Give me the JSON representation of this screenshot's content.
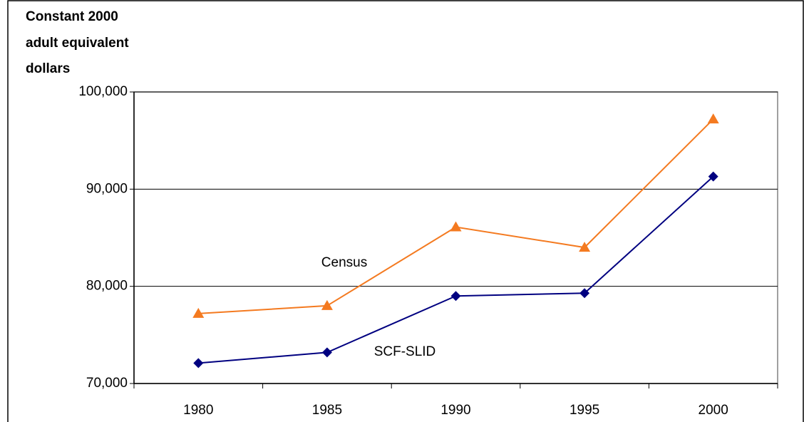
{
  "chart_data": {
    "type": "line",
    "ylabel": [
      "Constant 2000",
      "adult equivalent",
      "dollars"
    ],
    "categories": [
      "1980",
      "1985",
      "1990",
      "1995",
      "2000"
    ],
    "series": [
      {
        "name": "Census",
        "color": "#f47a20",
        "marker": "triangle",
        "values": [
          77200,
          78000,
          86100,
          84000,
          97200
        ]
      },
      {
        "name": "SCF-SLID",
        "color": "#000080",
        "marker": "diamond",
        "values": [
          72100,
          73200,
          79000,
          79300,
          91300
        ]
      }
    ],
    "ylim": [
      70000,
      100000
    ],
    "yticks": [
      {
        "value": 70000,
        "label": "70,000"
      },
      {
        "value": 80000,
        "label": "80,000"
      },
      {
        "value": 90000,
        "label": "90,000"
      },
      {
        "value": 100000,
        "label": "100,000"
      }
    ],
    "grid": true
  }
}
